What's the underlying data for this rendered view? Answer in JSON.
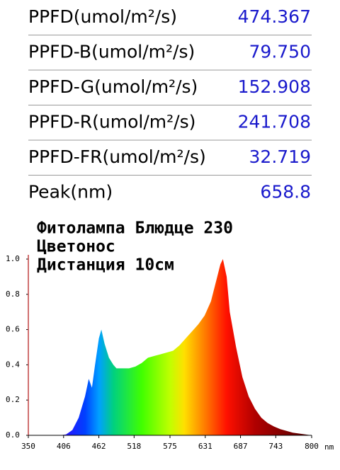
{
  "readings": [
    {
      "label": "PPFD(umol/m²/s)",
      "value": "474.367"
    },
    {
      "label": "PPFD-B(umol/m²/s)",
      "value": "79.750"
    },
    {
      "label": "PPFD-G(umol/m²/s)",
      "value": "152.908"
    },
    {
      "label": "PPFD-R(umol/m²/s)",
      "value": "241.708"
    },
    {
      "label": "PPFD-FR(umol/m²/s)",
      "value": "32.719"
    },
    {
      "label": "Peak(nm)",
      "value": "658.8"
    }
  ],
  "chart_data": {
    "type": "area",
    "annotations": [
      "Фитолампа Блюдце 230",
      "Цветонос",
      "Дистанция 10см"
    ],
    "xlabel": "nm",
    "x": [
      350,
      360,
      370,
      380,
      390,
      400,
      410,
      420,
      430,
      440,
      446,
      451,
      456,
      462,
      466,
      471,
      478,
      485,
      490,
      500,
      510,
      520,
      530,
      540,
      550,
      560,
      570,
      580,
      590,
      600,
      610,
      620,
      630,
      640,
      650,
      655,
      659,
      665,
      670,
      680,
      690,
      700,
      710,
      720,
      730,
      740,
      750,
      760,
      770,
      780,
      790,
      800
    ],
    "values": [
      0,
      0,
      0,
      0,
      0,
      0,
      0.005,
      0.03,
      0.1,
      0.22,
      0.32,
      0.27,
      0.4,
      0.55,
      0.6,
      0.52,
      0.44,
      0.4,
      0.38,
      0.38,
      0.38,
      0.39,
      0.41,
      0.44,
      0.45,
      0.46,
      0.47,
      0.48,
      0.51,
      0.55,
      0.59,
      0.63,
      0.68,
      0.76,
      0.9,
      0.97,
      1.0,
      0.9,
      0.7,
      0.5,
      0.33,
      0.22,
      0.15,
      0.1,
      0.07,
      0.05,
      0.035,
      0.025,
      0.015,
      0.01,
      0.005,
      0
    ],
    "xlim": [
      350,
      800
    ],
    "ylim": [
      0,
      1
    ],
    "xticks": [
      350,
      406,
      462,
      518,
      575,
      631,
      687,
      743,
      800
    ],
    "yticks": [
      {
        "value": 0,
        "label": "0.0"
      },
      {
        "value": 0.2,
        "label": "0.2"
      },
      {
        "value": 0.4,
        "label": "0.4"
      },
      {
        "value": 0.6,
        "label": "0.6"
      },
      {
        "value": 0.8,
        "label": "0.8"
      },
      {
        "value": 1,
        "label": "1.0"
      }
    ]
  }
}
